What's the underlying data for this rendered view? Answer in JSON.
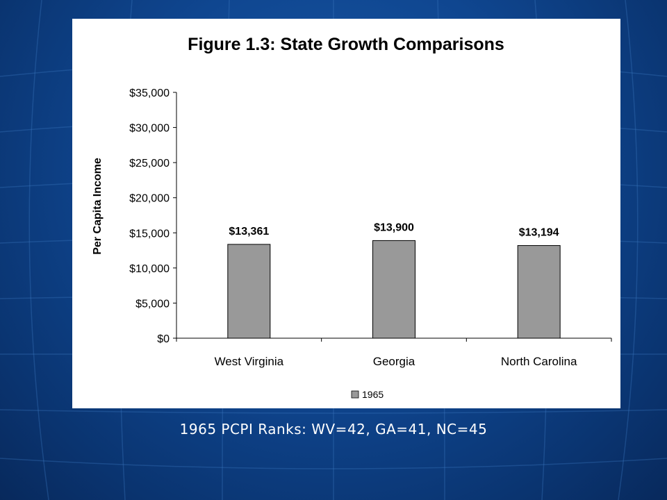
{
  "caption": "1965 PCPI Ranks: WV=42, GA=41, NC=45",
  "colors": {
    "background": "#0f4690",
    "bar_fill": "#999999",
    "bar_stroke": "#000000"
  },
  "chart_data": {
    "type": "bar",
    "title": "Figure 1.3: State Growth Comparisons",
    "xlabel": "",
    "ylabel": "Per Capita Income",
    "categories": [
      "West Virginia",
      "Georgia",
      "North Carolina"
    ],
    "series": [
      {
        "name": "1965",
        "values": [
          13361,
          13900,
          13194
        ],
        "labels": [
          "$13,361",
          "$13,900",
          "$13,194"
        ]
      }
    ],
    "ylim": [
      0,
      35000
    ],
    "yticks": [
      0,
      5000,
      10000,
      15000,
      20000,
      25000,
      30000,
      35000
    ],
    "ytick_labels": [
      "$0",
      "$5,000",
      "$10,000",
      "$15,000",
      "$20,000",
      "$25,000",
      "$30,000",
      "$35,000"
    ],
    "grid": false,
    "legend_position": "bottom"
  }
}
